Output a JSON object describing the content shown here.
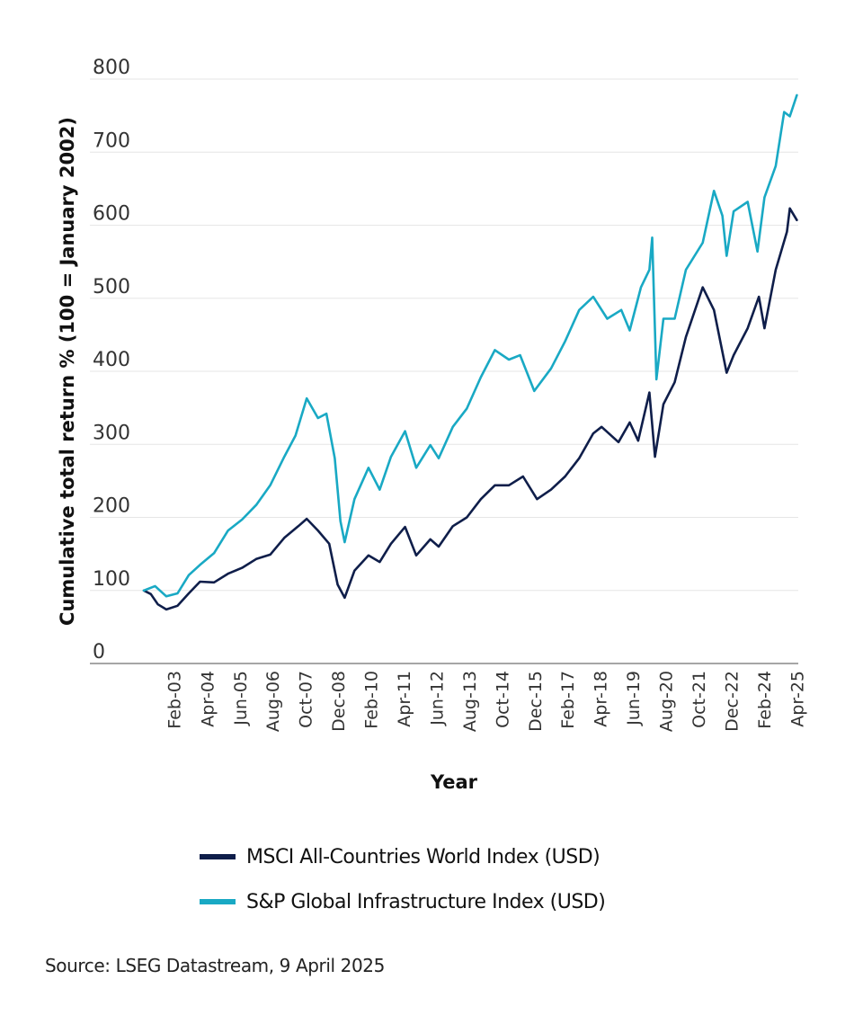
{
  "chart_data": {
    "type": "line",
    "title": "",
    "xlabel": "Year",
    "ylabel": "Cumulative total return % (100 = January 2002)",
    "ylim": [
      0,
      800
    ],
    "xlim": [
      2002.0,
      2025.27
    ],
    "yticks": [
      0,
      100,
      200,
      300,
      400,
      500,
      600,
      700,
      800
    ],
    "ytick_labels": [
      "0",
      "100",
      "200",
      "300",
      "400",
      "500",
      "600",
      "700",
      "800"
    ],
    "xticks": [
      {
        "label": "Feb-03",
        "t": 2003.08
      },
      {
        "label": "Apr-04",
        "t": 2004.25
      },
      {
        "label": "Jun-05",
        "t": 2005.42
      },
      {
        "label": "Aug-06",
        "t": 2006.58
      },
      {
        "label": "Oct-07",
        "t": 2007.75
      },
      {
        "label": "Dec-08",
        "t": 2008.92
      },
      {
        "label": "Feb-10",
        "t": 2010.08
      },
      {
        "label": "Apr-11",
        "t": 2011.25
      },
      {
        "label": "Jun-12",
        "t": 2012.42
      },
      {
        "label": "Aug-13",
        "t": 2013.58
      },
      {
        "label": "Oct-14",
        "t": 2014.75
      },
      {
        "label": "Dec-15",
        "t": 2015.92
      },
      {
        "label": "Feb-17",
        "t": 2017.08
      },
      {
        "label": "Apr-18",
        "t": 2018.25
      },
      {
        "label": "Jun-19",
        "t": 2019.42
      },
      {
        "label": "Aug-20",
        "t": 2020.58
      },
      {
        "label": "Oct-21",
        "t": 2021.75
      },
      {
        "label": "Dec-22",
        "t": 2022.92
      },
      {
        "label": "Feb-24",
        "t": 2024.08
      },
      {
        "label": "Apr-25",
        "t": 2025.25
      }
    ],
    "grid": true,
    "legend_position": "bottom",
    "series": [
      {
        "name": "MSCI All-Countries World Index (USD)",
        "color": "#0f1e4a",
        "x": [
          2002.0,
          2002.25,
          2002.5,
          2002.8,
          2003.2,
          2003.6,
          2004.0,
          2004.5,
          2005.0,
          2005.5,
          2006.0,
          2006.5,
          2007.0,
          2007.5,
          2007.8,
          2008.2,
          2008.6,
          2008.9,
          2009.15,
          2009.5,
          2010.0,
          2010.4,
          2010.8,
          2011.3,
          2011.7,
          2012.2,
          2012.5,
          2013.0,
          2013.5,
          2014.0,
          2014.5,
          2015.0,
          2015.5,
          2016.0,
          2016.5,
          2017.0,
          2017.5,
          2018.0,
          2018.3,
          2018.9,
          2019.3,
          2019.6,
          2020.0,
          2020.2,
          2020.5,
          2020.9,
          2021.3,
          2021.9,
          2022.3,
          2022.75,
          2023.0,
          2023.5,
          2023.9,
          2024.1,
          2024.5,
          2024.9,
          2025.0,
          2025.25
        ],
        "values": [
          100,
          95,
          81,
          74,
          79,
          96,
          112,
          111,
          123,
          131,
          143,
          149,
          172,
          188,
          198,
          182,
          164,
          108,
          90,
          127,
          148,
          139,
          164,
          187,
          148,
          170,
          160,
          188,
          200,
          225,
          244,
          244,
          256,
          225,
          238,
          256,
          281,
          315,
          324,
          303,
          330,
          305,
          371,
          283,
          355,
          385,
          447,
          515,
          484,
          398,
          422,
          459,
          502,
          459,
          539,
          591,
          623,
          607
        ]
      },
      {
        "name": "S&P Global Infrastructure Index (USD)",
        "color": "#19a9c4",
        "x": [
          2002.0,
          2002.4,
          2002.8,
          2003.2,
          2003.6,
          2004.0,
          2004.5,
          2005.0,
          2005.5,
          2006.0,
          2006.5,
          2007.0,
          2007.4,
          2007.8,
          2008.2,
          2008.5,
          2008.8,
          2009.0,
          2009.15,
          2009.5,
          2010.0,
          2010.4,
          2010.8,
          2011.3,
          2011.7,
          2012.2,
          2012.5,
          2013.0,
          2013.5,
          2014.0,
          2014.5,
          2015.0,
          2015.4,
          2015.9,
          2016.5,
          2017.0,
          2017.5,
          2018.0,
          2018.5,
          2019.0,
          2019.3,
          2019.7,
          2020.0,
          2020.1,
          2020.25,
          2020.5,
          2020.9,
          2021.3,
          2021.9,
          2022.3,
          2022.6,
          2022.75,
          2023.0,
          2023.5,
          2023.85,
          2024.1,
          2024.5,
          2024.8,
          2025.0,
          2025.25
        ],
        "values": [
          100,
          106,
          92,
          96,
          121,
          135,
          151,
          182,
          197,
          217,
          244,
          283,
          312,
          363,
          336,
          342,
          281,
          195,
          166,
          225,
          268,
          238,
          283,
          318,
          268,
          299,
          281,
          324,
          349,
          392,
          429,
          416,
          422,
          373,
          404,
          441,
          484,
          502,
          472,
          484,
          456,
          515,
          539,
          583,
          389,
          472,
          472,
          539,
          576,
          647,
          613,
          558,
          619,
          632,
          564,
          638,
          681,
          755,
          749,
          778
        ]
      }
    ]
  },
  "legend": {
    "items": [
      {
        "label": "MSCI All-Countries World Index (USD)",
        "color": "#0f1e4a"
      },
      {
        "label": "S&P Global Infrastructure Index (USD)",
        "color": "#19a9c4"
      }
    ]
  },
  "source": "Source: LSEG Datastream, 9 April 2025"
}
